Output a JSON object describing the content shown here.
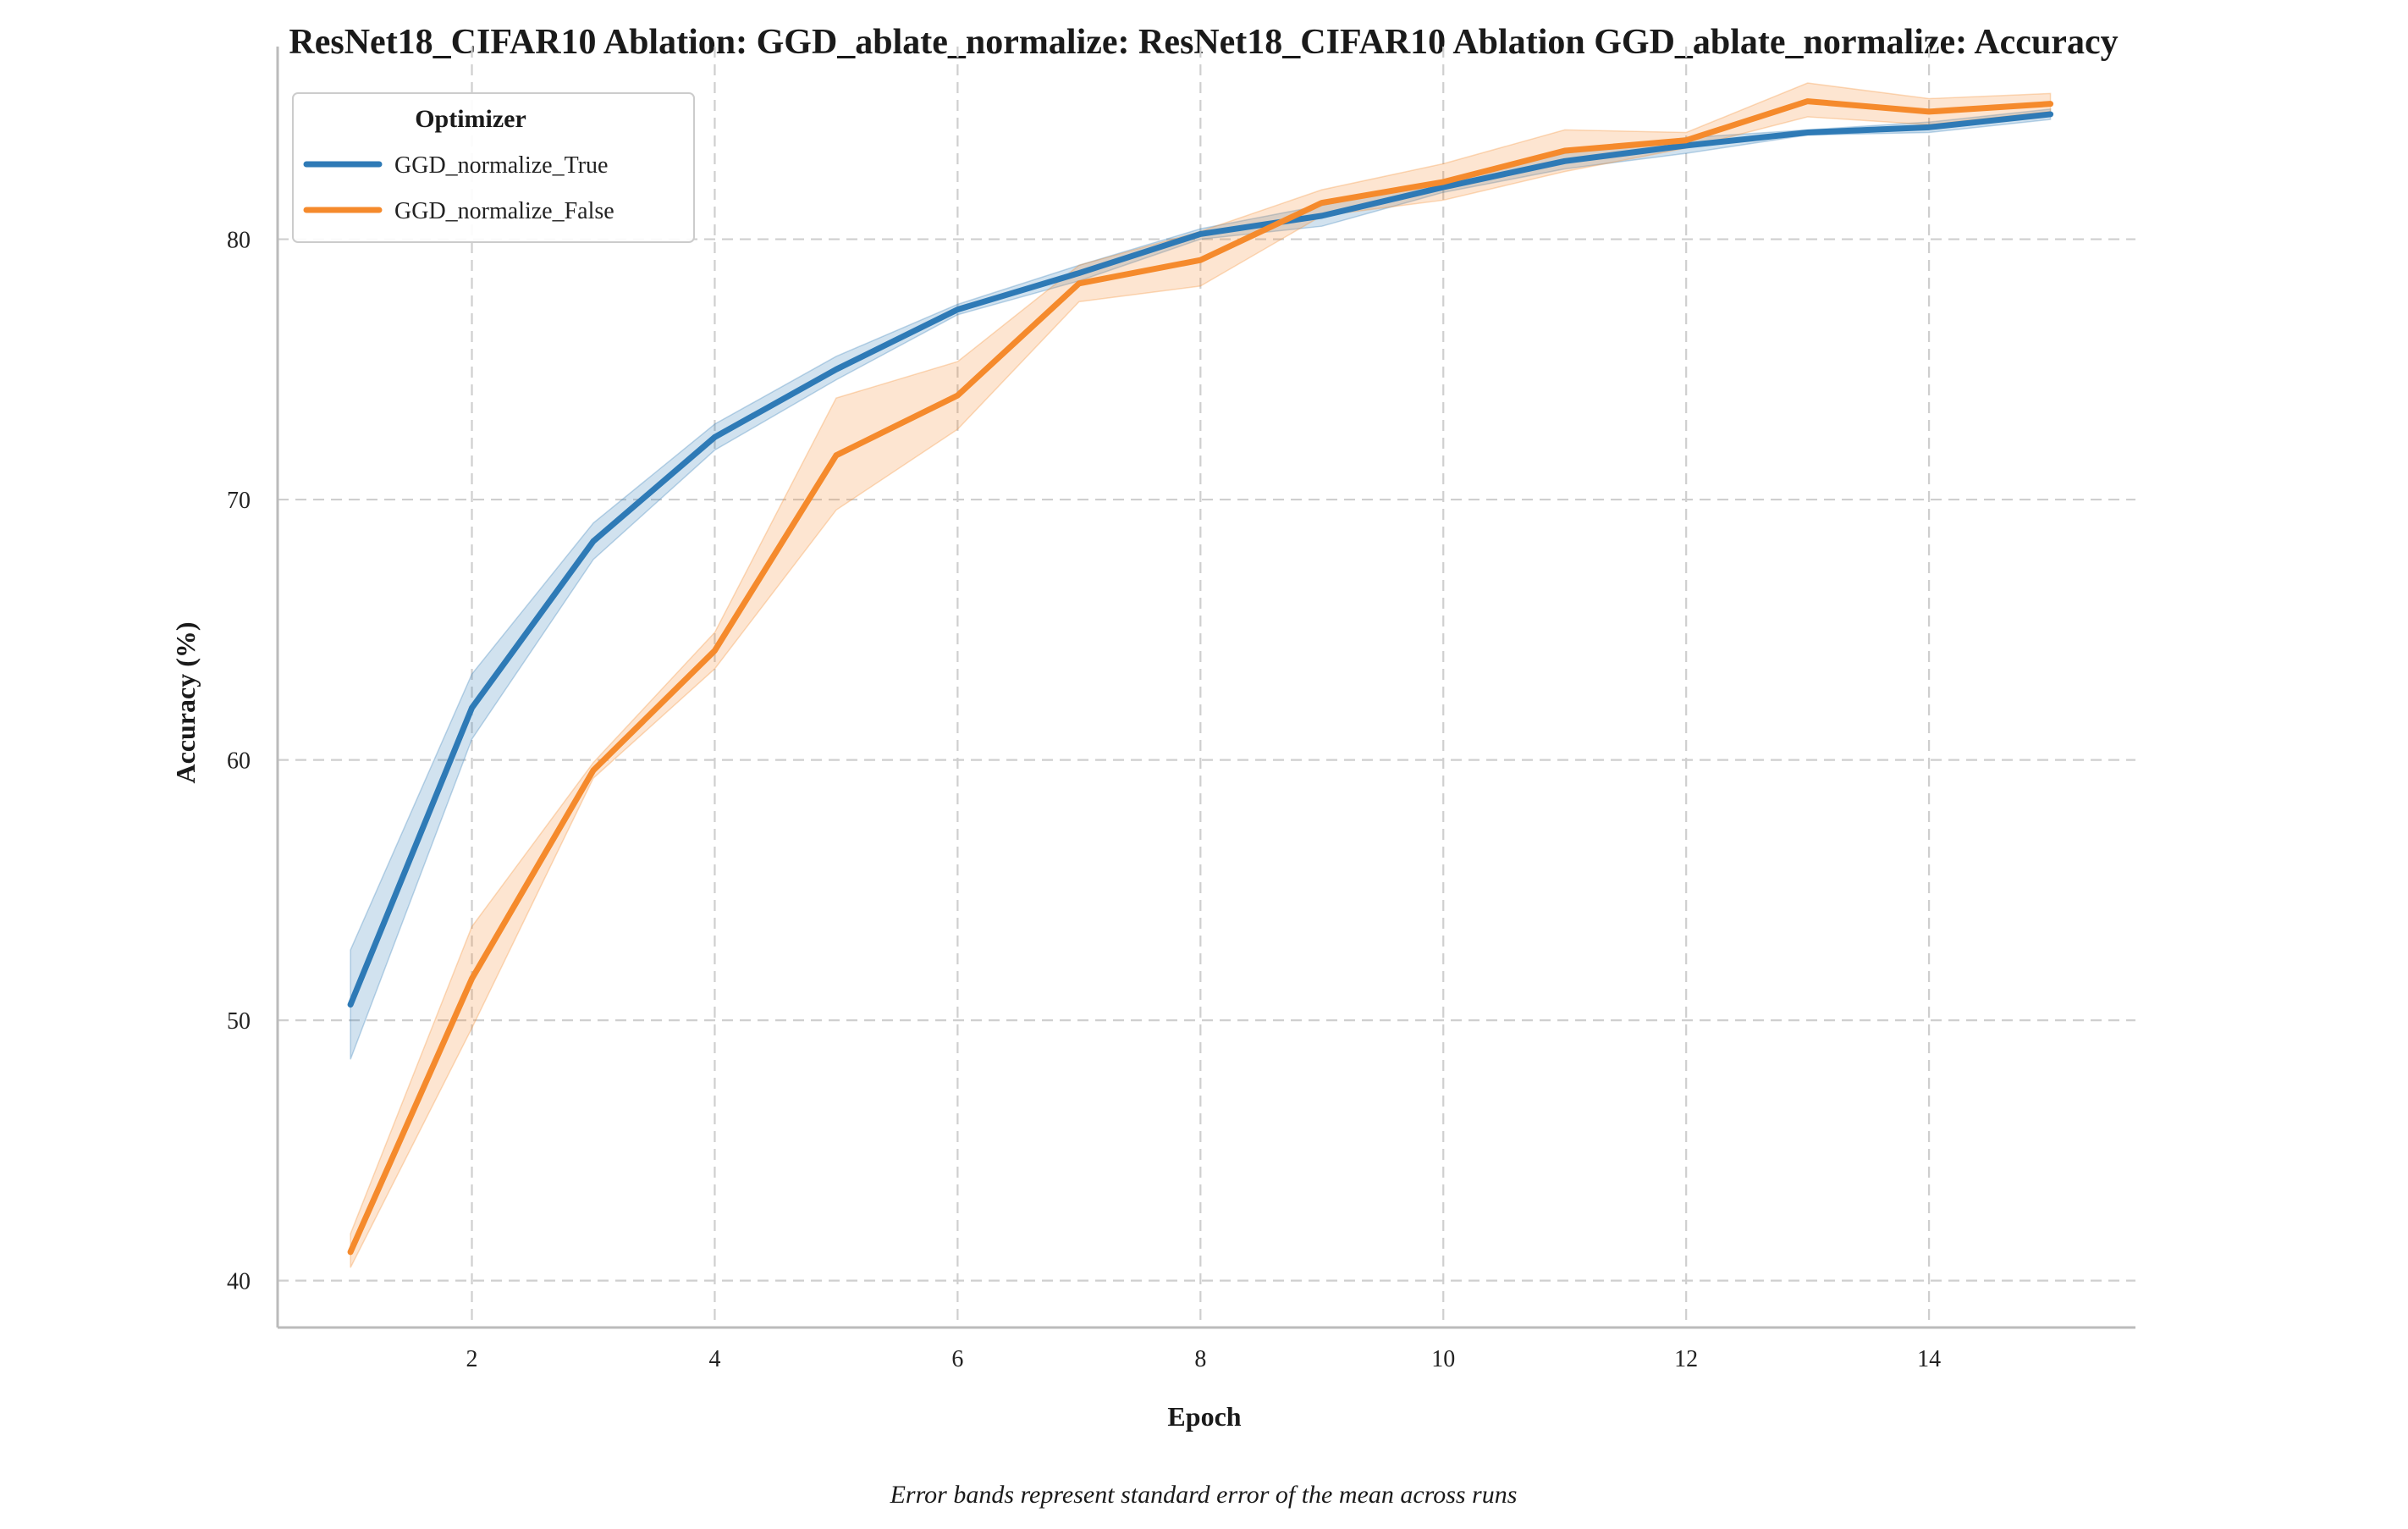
{
  "chart_data": {
    "type": "line",
    "title": "ResNet18_CIFAR10 Ablation: GGD_ablate_normalize: ResNet18_CIFAR10 Ablation GGD_ablate_normalize: Accuracy",
    "xlabel": "Epoch",
    "ylabel": "Accuracy (%)",
    "caption": "Error bands represent standard error of the mean across runs",
    "xlim": [
      0.4,
      15.7
    ],
    "ylim": [
      38.2,
      87.4
    ],
    "xticks": [
      2,
      4,
      6,
      8,
      10,
      12,
      14
    ],
    "yticks": [
      40,
      50,
      60,
      70,
      80
    ],
    "grid": true,
    "legend": {
      "title": "Optimizer",
      "placement": "top-left"
    },
    "x": [
      1,
      2,
      3,
      4,
      5,
      6,
      7,
      8,
      9,
      10,
      11,
      12,
      13,
      14,
      15
    ],
    "series": [
      {
        "name": "GGD_normalize_True",
        "color": "#2e7ab6",
        "values": [
          50.6,
          62.0,
          68.4,
          72.4,
          75.0,
          77.3,
          78.7,
          80.2,
          80.9,
          82.0,
          83.0,
          83.6,
          84.1,
          84.3,
          84.8
        ],
        "lower": [
          48.5,
          60.8,
          67.7,
          71.9,
          74.6,
          77.1,
          78.4,
          80.0,
          80.5,
          81.8,
          82.7,
          83.3,
          84.0,
          84.1,
          84.6
        ],
        "upper": [
          52.7,
          63.3,
          69.1,
          72.9,
          75.5,
          77.5,
          79.0,
          80.4,
          81.3,
          82.2,
          83.3,
          83.9,
          84.2,
          84.5,
          85.0
        ]
      },
      {
        "name": "GGD_normalize_False",
        "color": "#f58a2c",
        "values": [
          41.1,
          51.6,
          59.6,
          64.2,
          71.7,
          74.0,
          78.3,
          79.2,
          81.4,
          82.2,
          83.4,
          83.8,
          85.3,
          84.9,
          85.2
        ],
        "lower": [
          40.5,
          49.7,
          59.3,
          63.5,
          69.6,
          72.7,
          77.6,
          78.2,
          80.9,
          81.5,
          82.6,
          83.5,
          84.7,
          84.4,
          84.9
        ],
        "upper": [
          41.8,
          53.6,
          59.9,
          64.9,
          73.9,
          75.3,
          79.0,
          80.3,
          81.9,
          82.9,
          84.2,
          84.1,
          86.0,
          85.4,
          85.6
        ]
      }
    ]
  }
}
